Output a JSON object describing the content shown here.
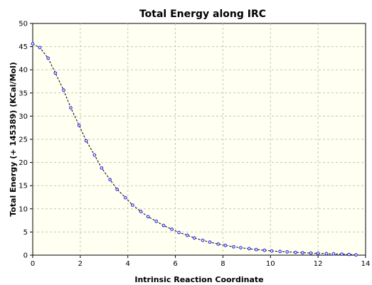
{
  "chart_data": {
    "type": "scatter",
    "title": "Total Energy along IRC",
    "xlabel": "Intrinsic Reaction Coordinate",
    "ylabel": "Total Energy (+ 145389) (KCal/Mol)",
    "xlim": [
      0,
      14
    ],
    "ylim": [
      0,
      50
    ],
    "xticks": [
      "0",
      "2",
      "4",
      "6",
      "8",
      "10",
      "12",
      "14"
    ],
    "yticks": [
      "0",
      "5",
      "10",
      "15",
      "20",
      "25",
      "30",
      "35",
      "40",
      "45",
      "50"
    ],
    "grid": true,
    "legend": "none",
    "colors": {
      "points": "#3a3ae0",
      "plot_background": "#fffff2",
      "grid": "#c8c8a8"
    },
    "series": [
      {
        "x": [
          0.0,
          0.3,
          0.65,
          0.95,
          1.3,
          1.6,
          1.95,
          2.25,
          2.6,
          2.9,
          3.25,
          3.55,
          3.9,
          4.2,
          4.55,
          4.85,
          5.2,
          5.5,
          5.85,
          6.15,
          6.5,
          6.8,
          7.15,
          7.45,
          7.8,
          8.1,
          8.45,
          8.75,
          9.1,
          9.4,
          9.75,
          10.05,
          10.4,
          10.7,
          11.05,
          11.35,
          11.7,
          12.0,
          12.35,
          12.65,
          13.0,
          13.3,
          13.6
        ],
        "y": [
          45.6,
          44.8,
          42.5,
          39.3,
          35.6,
          31.8,
          28.0,
          24.7,
          21.6,
          18.8,
          16.3,
          14.2,
          12.4,
          10.8,
          9.4,
          8.3,
          7.3,
          6.4,
          5.6,
          4.9,
          4.3,
          3.7,
          3.2,
          2.8,
          2.4,
          2.1,
          1.8,
          1.6,
          1.4,
          1.2,
          1.05,
          0.9,
          0.8,
          0.7,
          0.6,
          0.52,
          0.45,
          0.38,
          0.32,
          0.27,
          0.22,
          0.15,
          0.05
        ]
      }
    ]
  }
}
